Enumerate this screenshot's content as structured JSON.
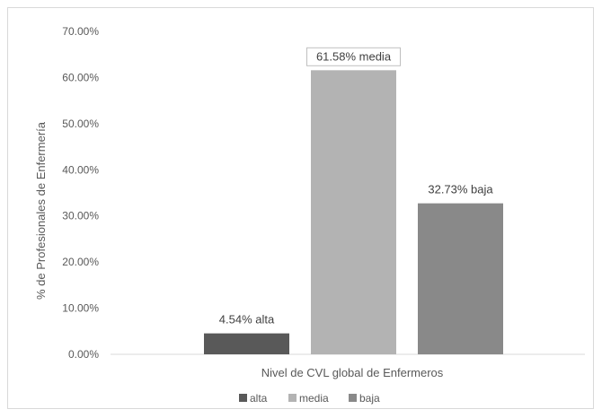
{
  "chart_data": {
    "type": "bar",
    "title": "",
    "xlabel": "Nivel de CVL global de Enfermeros",
    "ylabel": "% de Profesionales de Enfermería",
    "ylim": [
      0,
      70
    ],
    "yticks": [
      0,
      10,
      20,
      30,
      40,
      50,
      60,
      70
    ],
    "ytick_labels": [
      "0.00%",
      "10.00%",
      "20.00%",
      "30.00%",
      "40.00%",
      "50.00%",
      "60.00%",
      "70.00%"
    ],
    "grid": false,
    "legend_position": "bottom",
    "series": [
      {
        "name": "alta",
        "values": [
          4.54
        ],
        "color": "#595959",
        "data_label": "4.54% alta"
      },
      {
        "name": "media",
        "values": [
          61.58
        ],
        "color": "#b3b3b3",
        "data_label": "61.58% media",
        "label_boxed": true
      },
      {
        "name": "baja",
        "values": [
          32.73
        ],
        "color": "#898989",
        "data_label": "32.73% baja"
      }
    ]
  }
}
